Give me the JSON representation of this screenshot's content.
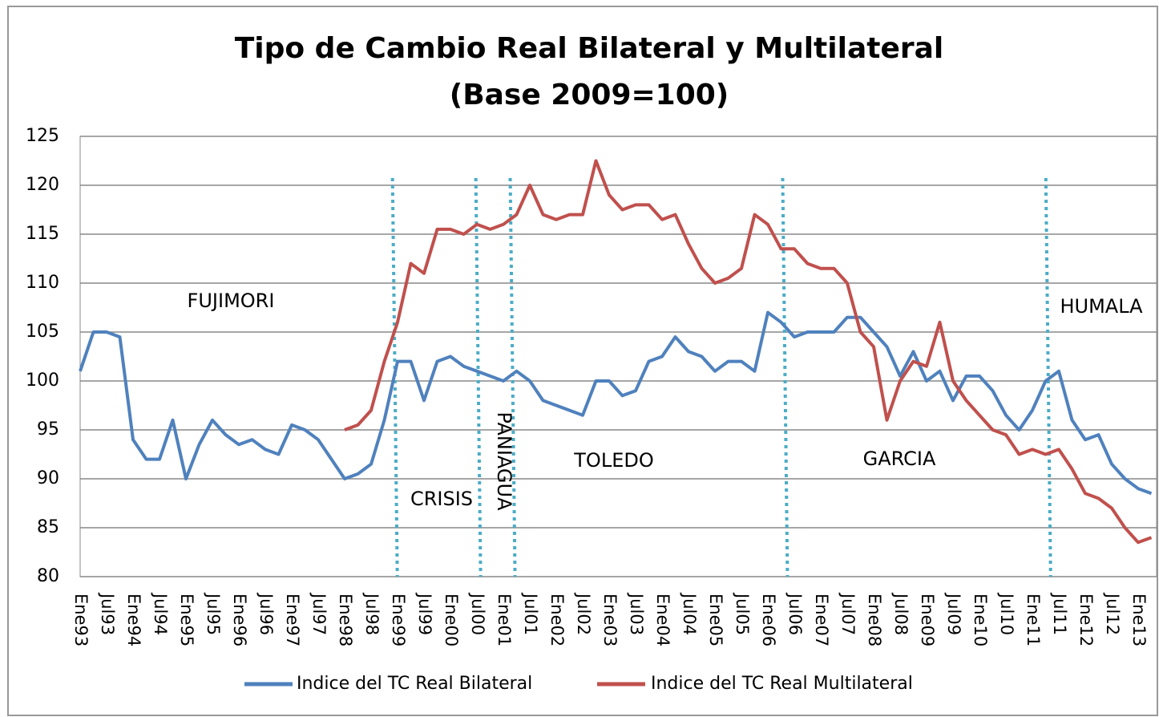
{
  "chart_data": {
    "type": "line",
    "title": "Tipo de Cambio Real Bilateral y Multilateral",
    "subtitle": "(Base 2009=100)",
    "categories": [
      "Ene93",
      null,
      "Jul93",
      null,
      "Ene94",
      null,
      "Jul94",
      null,
      "Ene95",
      null,
      "Jul95",
      null,
      "Ene96",
      null,
      "Jul96",
      null,
      "Ene97",
      null,
      "Jul97",
      null,
      "Ene98",
      null,
      "Jul98",
      null,
      "Ene99",
      null,
      "Jul99",
      null,
      "Ene00",
      null,
      "Jul00",
      null,
      "Ene01",
      null,
      "Jul01",
      null,
      "Ene02",
      null,
      "Jul02",
      null,
      "Ene03",
      null,
      "Jul03",
      null,
      "Ene04",
      null,
      "Jul04",
      null,
      "Ene05",
      null,
      "Jul05",
      null,
      "Ene06",
      null,
      "Jul06",
      null,
      "Ene07",
      null,
      "Jul07",
      null,
      "Ene08",
      null,
      "Jul08",
      null,
      "Ene09",
      null,
      "Jul09",
      null,
      "Ene10",
      null,
      "Jul10",
      null,
      "Ene11",
      null,
      "Jul11",
      null,
      "Ene12",
      null,
      "Jul12",
      null,
      "Ene13",
      null
    ],
    "series": [
      {
        "name": "Indice del TC Real Bilateral",
        "color": "#4f81bd",
        "values": [
          101,
          105,
          105,
          104.5,
          94,
          92,
          92,
          96,
          90,
          93.5,
          96,
          94.5,
          93.5,
          94,
          93,
          92.5,
          95.5,
          95,
          94,
          92,
          90,
          90.5,
          91.5,
          96,
          102,
          102,
          98,
          102,
          102.5,
          101.5,
          101,
          100.5,
          100,
          101,
          100,
          98,
          97.5,
          97,
          96.5,
          100,
          100,
          98.5,
          99,
          102,
          102.5,
          104.5,
          103,
          102.5,
          101,
          102,
          102,
          101,
          107,
          106,
          104.5,
          105,
          105,
          105,
          106.5,
          106.5,
          105,
          103.5,
          100.5,
          103,
          100,
          101,
          98,
          100.5,
          100.5,
          99,
          96.5,
          95,
          97,
          100,
          101,
          96,
          94,
          94.5,
          91.5,
          90,
          89,
          88.5
        ]
      },
      {
        "name": "Indice del TC Real Multilateral",
        "color": "#c0504d",
        "values": [
          null,
          null,
          null,
          null,
          null,
          null,
          null,
          null,
          null,
          null,
          null,
          null,
          null,
          null,
          null,
          null,
          null,
          null,
          null,
          null,
          95,
          95.5,
          97,
          102,
          106,
          112,
          111,
          115.5,
          115.5,
          115,
          116,
          115.5,
          116,
          117,
          120,
          117,
          116.5,
          117,
          117,
          122.5,
          119,
          117.5,
          118,
          118,
          116.5,
          117,
          114,
          111.5,
          110,
          110.5,
          111.5,
          117,
          116,
          113.5,
          113.5,
          112,
          111.5,
          111.5,
          110,
          105,
          103.5,
          96,
          100,
          102,
          101.5,
          106,
          100,
          98,
          96.5,
          95,
          94.5,
          92.5,
          93,
          92.5,
          93,
          91,
          88.5,
          88,
          87,
          85,
          83.5,
          84
        ]
      }
    ],
    "ylim": [
      80,
      125
    ],
    "yticks": [
      80,
      85,
      90,
      95,
      100,
      105,
      110,
      115,
      120,
      125
    ],
    "grid": true,
    "event_lines": [
      23.8,
      30.1,
      32.7,
      53.3,
      73.2
    ],
    "annotations": [
      "FUJIMORI",
      "CRISIS",
      "PANIAGUA",
      "TOLEDO",
      "GARCIA",
      "HUMALA"
    ]
  }
}
